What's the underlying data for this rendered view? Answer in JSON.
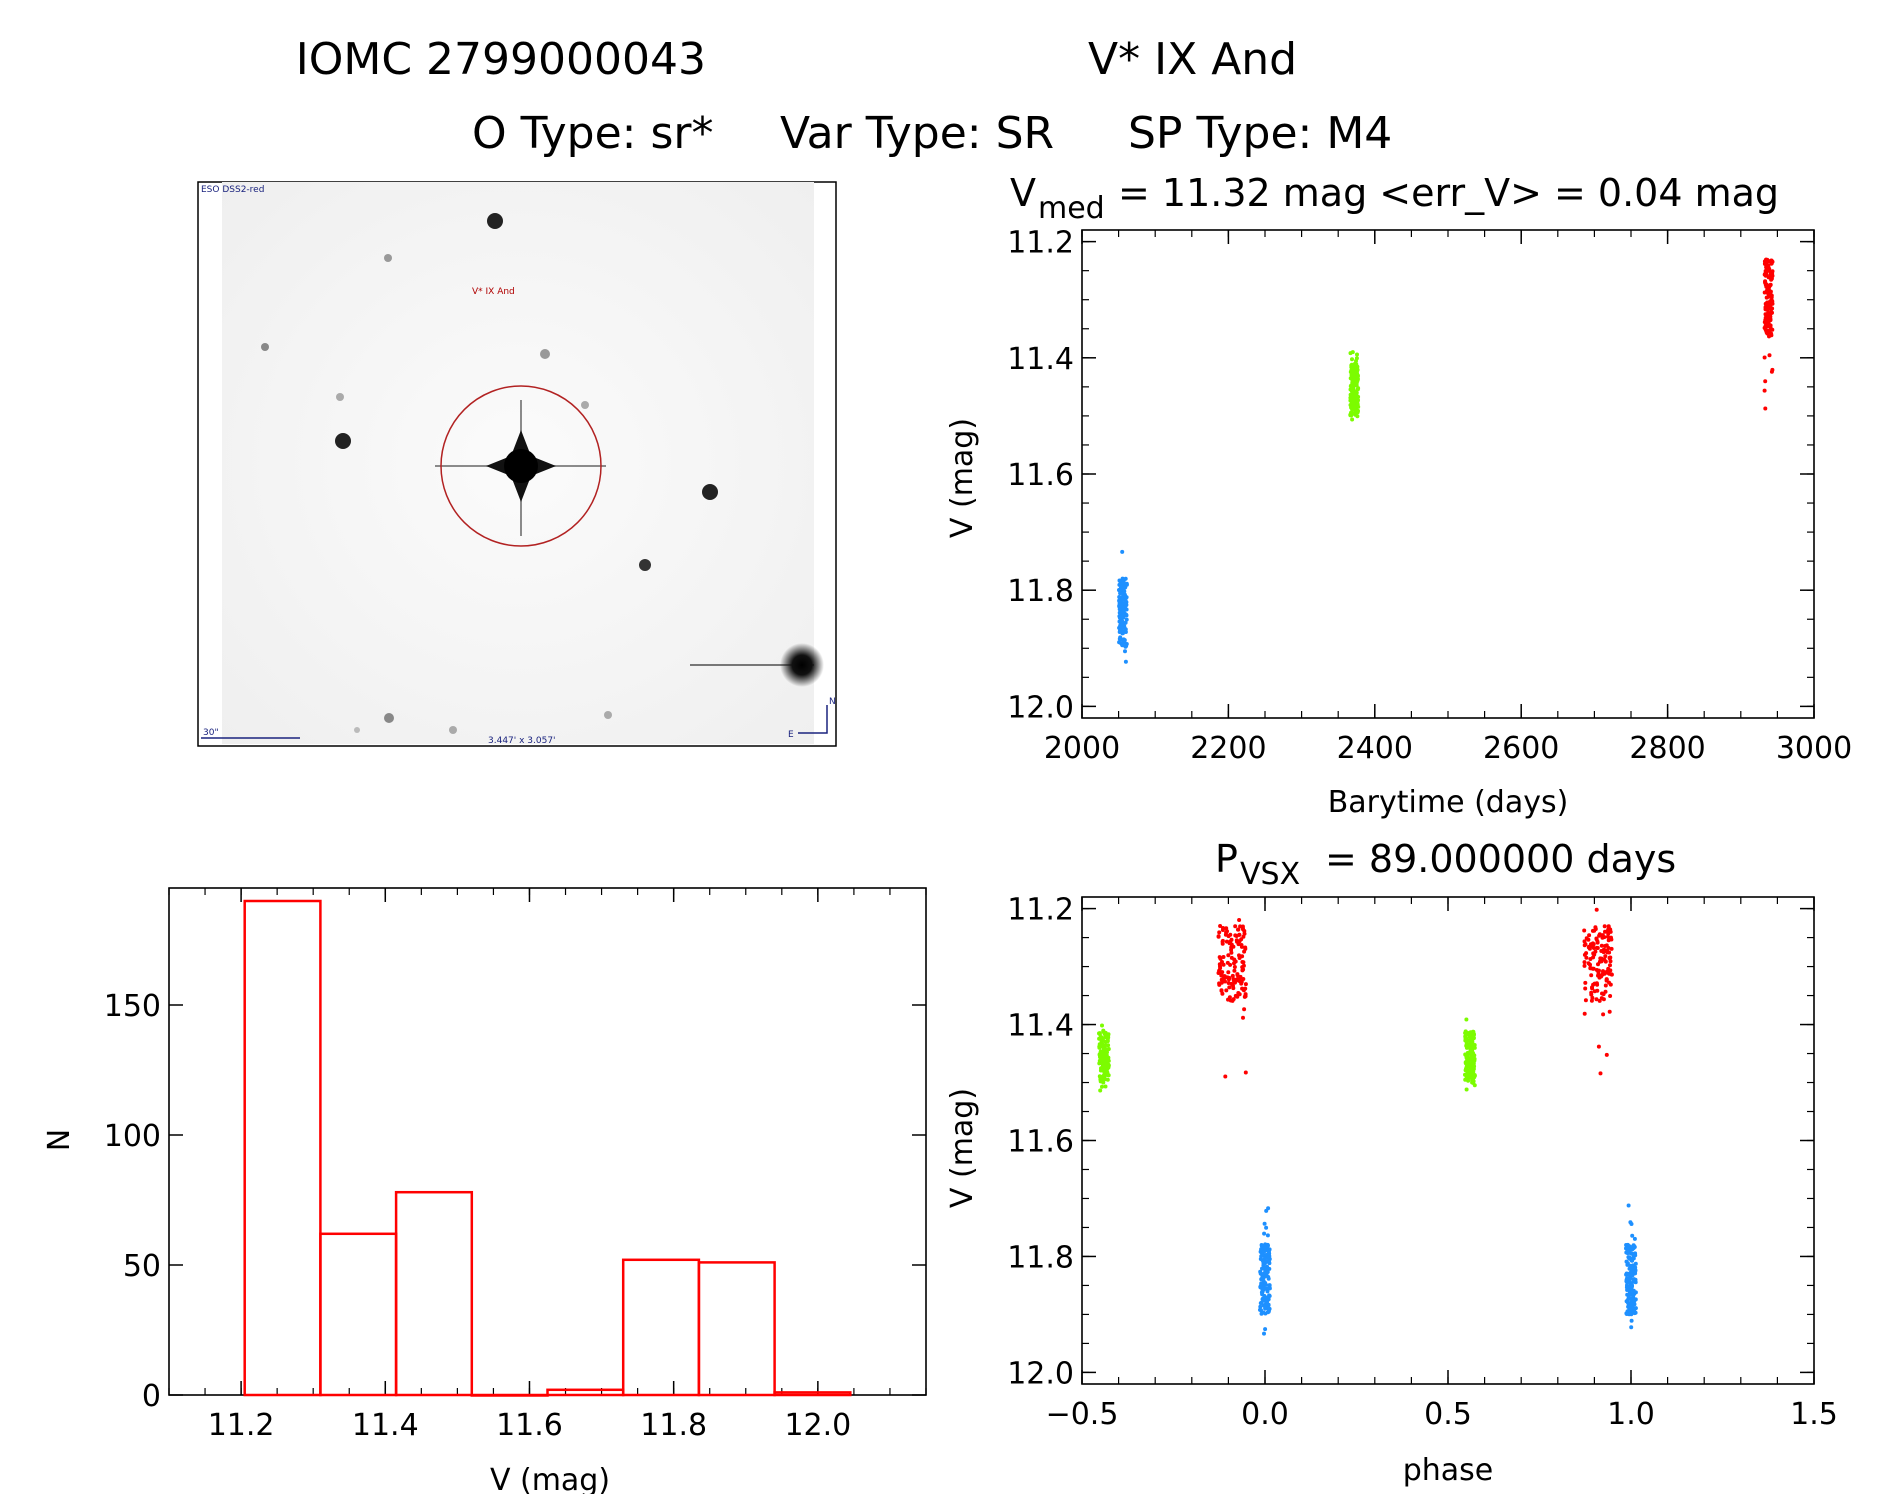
{
  "header": {
    "line1_id": "IOMC 2799000043",
    "line1_name": "V* IX And",
    "line2_otype": "O Type: sr*",
    "line2_vartype": "Var Type: SR",
    "line2_sptype": "SP Type: M4"
  },
  "thumbnail": {
    "survey_label": "ESO DSS2-red",
    "target_label": "V* IX And",
    "scale_label": "30\"",
    "fov_label": "3.447' x 3.057'",
    "north_label": "N",
    "east_label": "E"
  },
  "colors": {
    "season1": "#1e90ff",
    "season2": "#7cfc00",
    "season3": "#ff0000",
    "histogram": "#ff0000",
    "circle": "#b22222"
  },
  "chart_data": [
    {
      "id": "lightcurve",
      "type": "scatter",
      "title_prefix": "V",
      "title_sub": "med",
      "title_rest": "= 11.32 mag <err_V> = 0.04 mag",
      "xlabel": "Barytime (days)",
      "ylabel": "V (mag)",
      "xlim": [
        2000,
        3000
      ],
      "ylim": [
        12.02,
        11.18
      ],
      "xticks": [
        "2000",
        "2200",
        "2400",
        "2600",
        "2800",
        "3000"
      ],
      "yticks": [
        "11.2",
        "11.4",
        "11.6",
        "11.8",
        "12.0"
      ],
      "series": [
        {
          "name": "season1",
          "x": 2056,
          "y_range": [
            11.71,
            11.94
          ],
          "y_core": [
            11.78,
            11.9
          ]
        },
        {
          "name": "season2",
          "x": 2372,
          "y_range": [
            11.39,
            11.52
          ],
          "y_core": [
            11.41,
            11.5
          ]
        },
        {
          "name": "season3",
          "x": 2938,
          "y_range": [
            11.2,
            11.5
          ],
          "y_core": [
            11.23,
            11.36
          ]
        }
      ]
    },
    {
      "id": "phased",
      "type": "scatter",
      "title_prefix": "P",
      "title_sub": "VSX",
      "title_rest": "= 89.000000 days",
      "xlabel": "phase",
      "ylabel": "V (mag)",
      "xlim": [
        -0.5,
        1.5
      ],
      "ylim": [
        12.02,
        11.18
      ],
      "xticks": [
        "−0.5",
        "0.0",
        "0.5",
        "1.0",
        "1.5"
      ],
      "yticks": [
        "11.2",
        "11.4",
        "11.6",
        "11.8",
        "12.0"
      ],
      "series": [
        {
          "name": "season1",
          "phases": [
            0.0,
            1.0
          ],
          "y_range": [
            11.71,
            11.94
          ],
          "y_core": [
            11.78,
            11.9
          ]
        },
        {
          "name": "season2",
          "phases": [
            -0.44,
            0.56
          ],
          "y_range": [
            11.39,
            11.52
          ],
          "y_core": [
            11.41,
            11.5
          ]
        },
        {
          "name": "season3",
          "phases": [
            -0.09,
            0.91
          ],
          "y_range": [
            11.2,
            11.5
          ],
          "y_core": [
            11.23,
            11.36
          ]
        }
      ]
    },
    {
      "id": "histogram",
      "type": "bar",
      "xlabel": "V (mag)",
      "ylabel": "N",
      "xlim": [
        11.1,
        12.15
      ],
      "ylim": [
        0,
        195
      ],
      "xticks": [
        "11.2",
        "11.4",
        "11.6",
        "11.8",
        "12.0"
      ],
      "yticks": [
        "0",
        "50",
        "100",
        "150"
      ],
      "bin_edges": [
        11.205,
        11.31,
        11.415,
        11.52,
        11.625,
        11.73,
        11.835,
        11.94,
        12.045
      ],
      "counts": [
        190,
        62,
        78,
        0,
        2,
        52,
        51,
        1
      ]
    }
  ]
}
